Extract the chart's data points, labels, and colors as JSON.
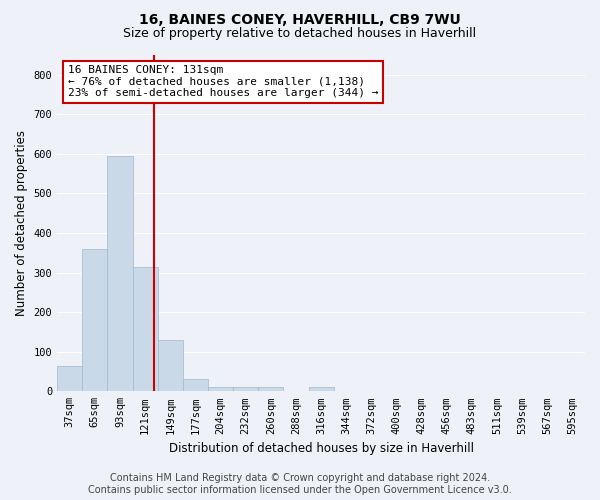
{
  "title": "16, BAINES CONEY, HAVERHILL, CB9 7WU",
  "subtitle": "Size of property relative to detached houses in Haverhill",
  "xlabel": "Distribution of detached houses by size in Haverhill",
  "ylabel": "Number of detached properties",
  "footer_line1": "Contains HM Land Registry data © Crown copyright and database right 2024.",
  "footer_line2": "Contains public sector information licensed under the Open Government Licence v3.0.",
  "bin_labels": [
    "37sqm",
    "65sqm",
    "93sqm",
    "121sqm",
    "149sqm",
    "177sqm",
    "204sqm",
    "232sqm",
    "260sqm",
    "288sqm",
    "316sqm",
    "344sqm",
    "372sqm",
    "400sqm",
    "428sqm",
    "456sqm",
    "483sqm",
    "511sqm",
    "539sqm",
    "567sqm",
    "595sqm"
  ],
  "bar_values": [
    65,
    360,
    595,
    315,
    130,
    30,
    10,
    10,
    10,
    0,
    10,
    0,
    0,
    0,
    0,
    0,
    0,
    0,
    0,
    0,
    0
  ],
  "bar_color": "#c9d9e8",
  "bar_edgecolor": "#a0b8cc",
  "vline_color": "#cc0000",
  "annotation_line1": "16 BAINES CONEY: 131sqm",
  "annotation_line2": "← 76% of detached houses are smaller (1,138)",
  "annotation_line3": "23% of semi-detached houses are larger (344) →",
  "annotation_box_color": "#ffffff",
  "annotation_box_edgecolor": "#cc0000",
  "ylim": [
    0,
    850
  ],
  "yticks": [
    0,
    100,
    200,
    300,
    400,
    500,
    600,
    700,
    800
  ],
  "bg_color": "#eef2f8",
  "grid_color": "#ffffff",
  "title_fontsize": 10,
  "subtitle_fontsize": 9,
  "axis_label_fontsize": 8.5,
  "tick_fontsize": 7.5,
  "annotation_fontsize": 8,
  "footer_fontsize": 7
}
